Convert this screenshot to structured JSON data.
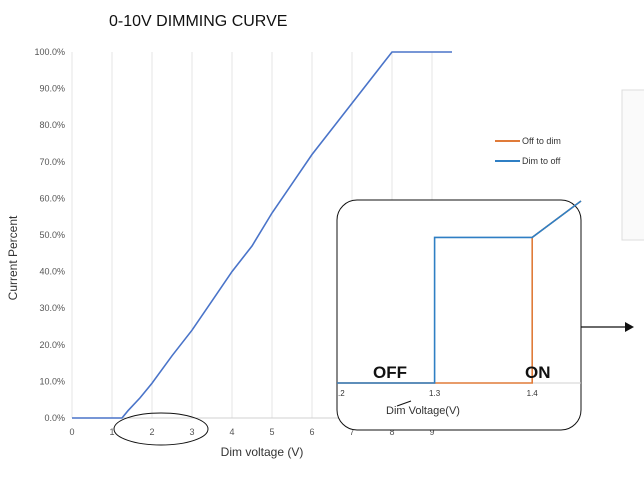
{
  "chart_data": [
    {
      "type": "line",
      "title": "0-10V DIMMING CURVE",
      "xlabel": "Dim voltage (V)",
      "ylabel": "Current Percent",
      "xlim": [
        0,
        9.5
      ],
      "ylim": [
        0,
        100
      ],
      "x_ticks": [
        "0",
        "1",
        "2",
        "3",
        "4",
        "5",
        "6",
        "7",
        "8",
        "9"
      ],
      "y_ticks": [
        "0.0%",
        "10.0%",
        "20.0%",
        "30.0%",
        "40.0%",
        "50.0%",
        "60.0%",
        "70.0%",
        "80.0%",
        "90.0%",
        "100.0%"
      ],
      "grid": "vertical",
      "legend": "right",
      "colors": {
        "off_to_dim": "#e07b39",
        "dim_to_off": "#2f7fc4",
        "main_line": "#4a74c9"
      },
      "legend_entries": [
        "Off to dim",
        "Dim to off"
      ],
      "series": [
        {
          "x": [
            0,
            1.25,
            1.4,
            1.7,
            2.0,
            2.5,
            3.0,
            3.5,
            4.0,
            4.5,
            5.0,
            5.5,
            6.0,
            6.5,
            7.0,
            7.5,
            8.0,
            9.5
          ],
          "values": [
            0,
            0,
            2,
            5.5,
            9.5,
            17,
            24,
            32,
            40,
            47,
            56,
            64,
            72,
            79,
            86,
            93,
            100,
            100
          ]
        }
      ]
    },
    {
      "type": "line",
      "xlabel": "Dim Voltage(V)",
      "xlim": [
        1.2,
        1.45
      ],
      "ylim": [
        0,
        100
      ],
      "x_ticks": [
        ".2",
        "1.3",
        "1.4"
      ],
      "annotations": [
        "OFF",
        "ON"
      ],
      "series": [
        {
          "name": "Off to dim",
          "x": [
            1.2,
            1.4,
            1.4,
            1.45
          ],
          "values": [
            0,
            0,
            80,
            100
          ]
        },
        {
          "name": "Dim to off",
          "x": [
            1.2,
            1.3,
            1.3,
            1.4,
            1.45
          ],
          "values": [
            0,
            0,
            80,
            80,
            100
          ]
        }
      ]
    }
  ]
}
